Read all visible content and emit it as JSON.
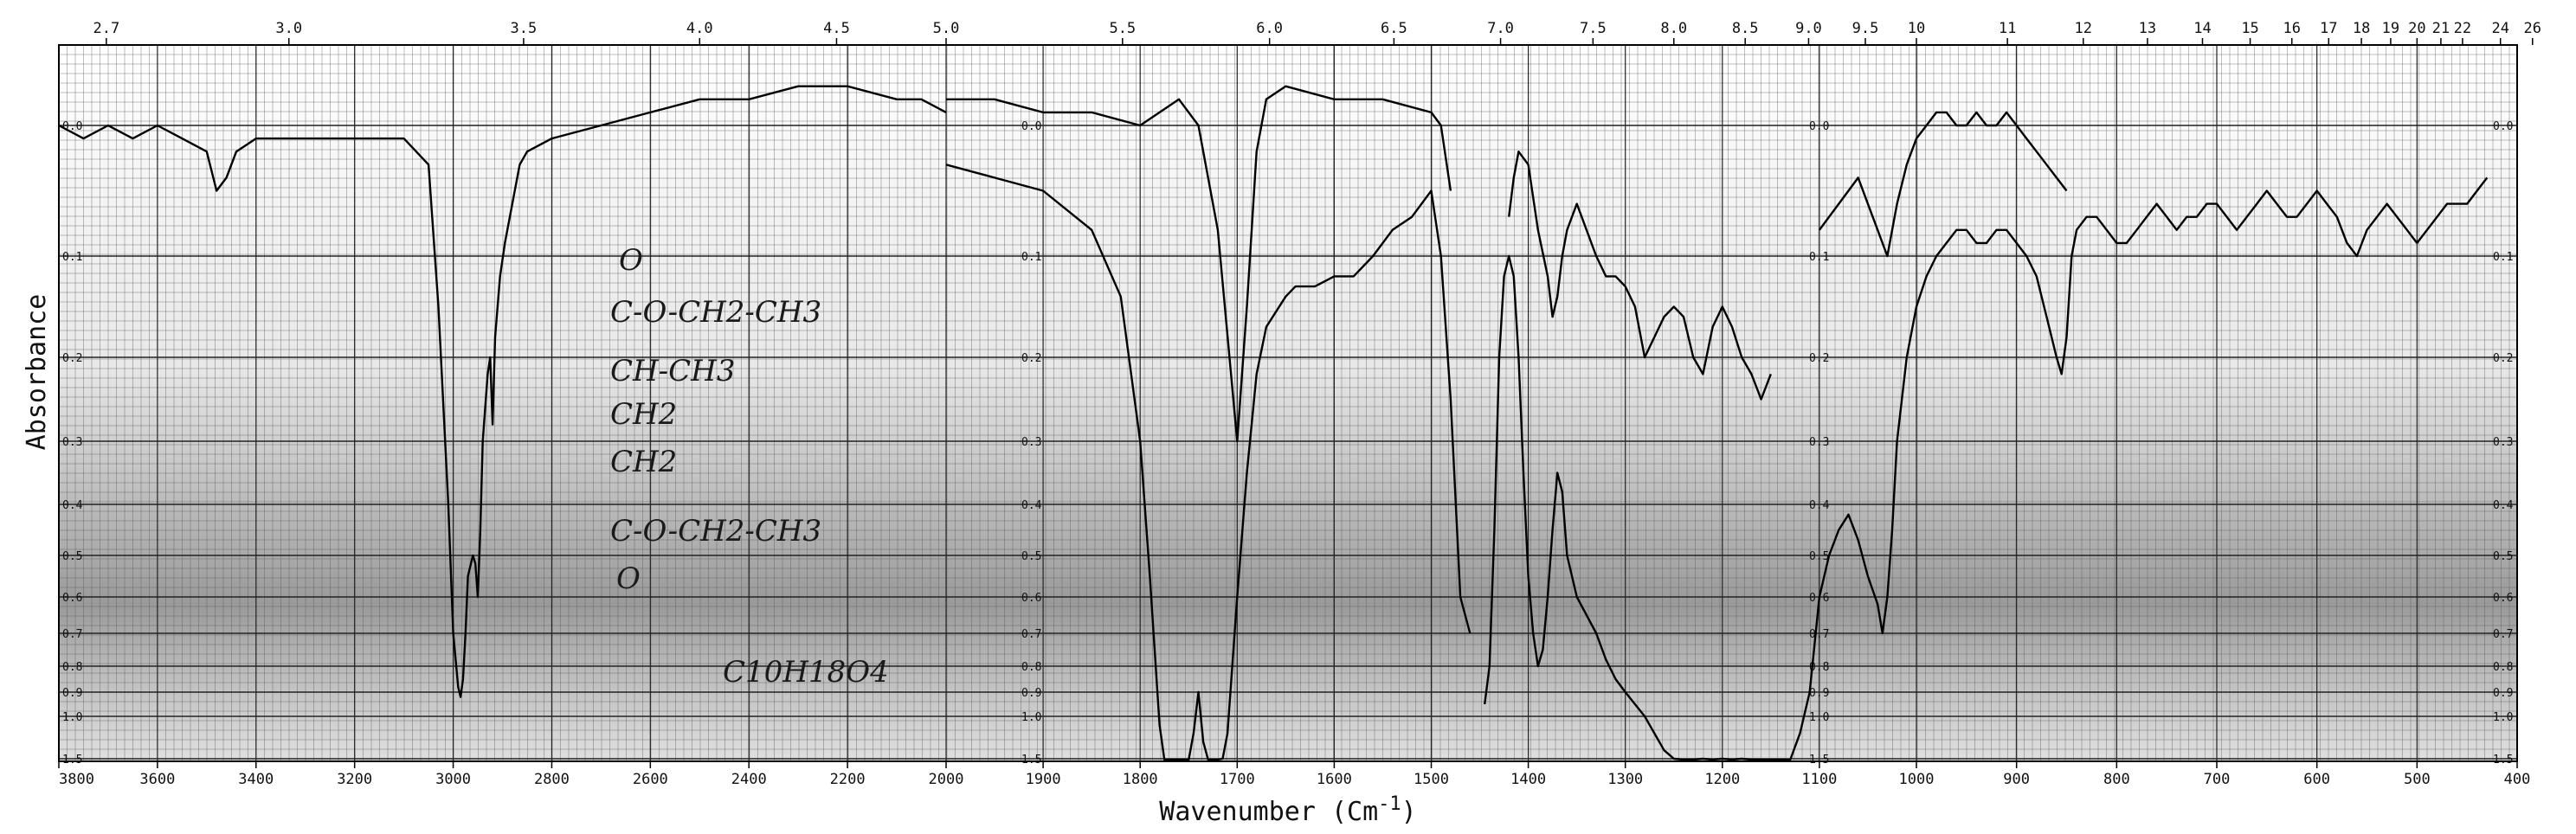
{
  "chart_data": {
    "type": "line",
    "xlabel": "Wavenumber (Cm",
    "xlabel_sup": "-1",
    "ylabel": "Absorbance",
    "x_scale": "piecewise-linear (2x expanded above 2000 cm-1)",
    "grid": true,
    "wavenumber_ticks": [
      "3800",
      "3600",
      "3400",
      "3200",
      "3000",
      "2800",
      "2600",
      "2400",
      "2200",
      "2000",
      "1900",
      "1800",
      "1700",
      "1600",
      "1500",
      "1400",
      "1300",
      "1200",
      "1100",
      "1000",
      "900",
      "800",
      "700",
      "600",
      "500",
      "400"
    ],
    "wavelength_ticks": [
      "2.7",
      "3.0",
      "3.5",
      "4.0",
      "4.5",
      "5.0",
      "5.5",
      "6.0",
      "6.5",
      "7.0",
      "7.5",
      "8.0",
      "8.5",
      "9.0",
      "9.5",
      "10",
      "11",
      "12",
      "13",
      "14",
      "15",
      "16",
      "17",
      "18",
      "19",
      "20",
      "21",
      "22",
      "24",
      "26"
    ],
    "absorbance_ticks": [
      "0.0",
      "0.1",
      "0.2",
      "0.3",
      "0.4",
      "0.5",
      "0.6",
      "0.7",
      "0.8",
      "0.9",
      "1.0",
      "1.5"
    ],
    "annotations": {
      "structure_lines": [
        "O",
        "C-O-CH2-CH3",
        "CH-CH3",
        "CH2",
        "CH2",
        "C-O-CH2-CH3",
        "O"
      ],
      "formula": "C10H18O4"
    },
    "series": [
      {
        "segment": "upper range",
        "x": [
          3800,
          3750,
          3700,
          3650,
          3600,
          3550,
          3500,
          3480,
          3460,
          3440,
          3400,
          3300,
          3200,
          3100,
          3050,
          3030,
          3010,
          3000,
          2990,
          2985,
          2980,
          2975,
          2970,
          2960,
          2955,
          2950,
          2945,
          2940,
          2930,
          2925,
          2920,
          2915,
          2905,
          2895,
          2885,
          2875,
          2865,
          2850,
          2800,
          2700,
          2600,
          2500,
          2400,
          2300,
          2200,
          2100,
          2050,
          2000
        ],
        "y": [
          0.0,
          0.01,
          0.0,
          0.01,
          0.0,
          0.01,
          0.02,
          0.05,
          0.04,
          0.02,
          0.01,
          0.01,
          0.01,
          0.01,
          0.03,
          0.15,
          0.4,
          0.7,
          0.88,
          0.92,
          0.85,
          0.7,
          0.55,
          0.5,
          0.52,
          0.6,
          0.45,
          0.3,
          0.22,
          0.2,
          0.28,
          0.18,
          0.12,
          0.09,
          0.07,
          0.05,
          0.03,
          0.02,
          0.01,
          0.0,
          -0.01,
          -0.02,
          -0.02,
          -0.03,
          -0.03,
          -0.02,
          -0.02,
          -0.01
        ]
      },
      {
        "segment": "trace 2 (carbonyl region)",
        "x": [
          2000,
          1950,
          1900,
          1850,
          1820,
          1800,
          1790,
          1780,
          1775,
          1770,
          1765,
          1755,
          1750,
          1745,
          1740,
          1735,
          1730,
          1725,
          1720,
          1715,
          1710,
          1700,
          1690,
          1680,
          1670,
          1650,
          1640,
          1620,
          1600,
          1580,
          1560,
          1540,
          1520,
          1500,
          1490,
          1480,
          1470,
          1460
        ],
        "y": [
          0.03,
          0.04,
          0.05,
          0.08,
          0.14,
          0.3,
          0.55,
          1.1,
          1.6,
          1.8,
          1.8,
          1.8,
          1.6,
          1.2,
          0.9,
          1.3,
          1.8,
          1.8,
          1.7,
          1.5,
          1.2,
          0.6,
          0.35,
          0.22,
          0.17,
          0.14,
          0.13,
          0.13,
          0.12,
          0.12,
          0.1,
          0.08,
          0.07,
          0.05,
          0.1,
          0.25,
          0.6,
          0.7
        ]
      },
      {
        "segment": "trace 2 (fingerprint region)",
        "x": [
          1445,
          1440,
          1435,
          1430,
          1425,
          1420,
          1415,
          1410,
          1405,
          1400,
          1395,
          1390,
          1385,
          1380,
          1375,
          1370,
          1365,
          1360,
          1350,
          1340,
          1330,
          1320,
          1310,
          1300,
          1290,
          1280,
          1270,
          1260,
          1250,
          1240,
          1230,
          1220,
          1210,
          1200,
          1190,
          1180,
          1170,
          1160,
          1150,
          1140,
          1130,
          1120,
          1110,
          1100,
          1090,
          1080,
          1070,
          1060,
          1050,
          1040,
          1035,
          1030,
          1025,
          1020,
          1010,
          1000,
          990,
          980,
          970,
          960,
          950,
          940,
          930,
          920,
          910,
          900,
          890,
          880,
          870,
          860,
          855,
          850,
          845,
          840,
          830,
          820,
          810,
          800,
          790,
          780,
          770,
          760,
          750,
          740,
          730,
          720,
          710,
          700,
          690,
          680,
          670,
          660,
          650,
          640,
          630,
          620,
          610,
          600,
          590,
          580,
          570,
          560,
          550,
          540,
          530,
          520,
          510,
          500,
          490,
          480,
          470,
          460,
          450,
          440,
          430
        ],
        "y": [
          0.95,
          0.8,
          0.45,
          0.2,
          0.12,
          0.1,
          0.12,
          0.2,
          0.35,
          0.55,
          0.7,
          0.8,
          0.75,
          0.6,
          0.45,
          0.35,
          0.38,
          0.5,
          0.6,
          0.65,
          0.7,
          0.78,
          0.85,
          0.9,
          0.95,
          1.0,
          1.2,
          1.4,
          1.5,
          1.55,
          1.6,
          1.5,
          1.6,
          1.5,
          1.55,
          1.5,
          1.6,
          1.7,
          1.8,
          1.9,
          1.6,
          1.2,
          0.9,
          0.6,
          0.5,
          0.45,
          0.42,
          0.47,
          0.55,
          0.62,
          0.7,
          0.6,
          0.45,
          0.3,
          0.2,
          0.15,
          0.12,
          0.1,
          0.09,
          0.08,
          0.08,
          0.09,
          0.09,
          0.08,
          0.08,
          0.09,
          0.1,
          0.12,
          0.16,
          0.2,
          0.22,
          0.18,
          0.1,
          0.08,
          0.07,
          0.07,
          0.08,
          0.09,
          0.09,
          0.08,
          0.07,
          0.06,
          0.07,
          0.08,
          0.07,
          0.07,
          0.06,
          0.06,
          0.07,
          0.08,
          0.07,
          0.06,
          0.05,
          0.06,
          0.07,
          0.07,
          0.06,
          0.05,
          0.06,
          0.07,
          0.09,
          0.1,
          0.08,
          0.07,
          0.06,
          0.07,
          0.08,
          0.09,
          0.08,
          0.07,
          0.06,
          0.06,
          0.06,
          0.05,
          0.04
        ]
      },
      {
        "segment": "trace 1 (baseline overlay)",
        "x": [
          2000,
          1950,
          1900,
          1850,
          1800,
          1780,
          1760,
          1740,
          1720,
          1700,
          1690,
          1680,
          1670,
          1650,
          1600,
          1550,
          1500,
          1490,
          1480
        ],
        "y": [
          -0.02,
          -0.02,
          -0.01,
          -0.01,
          0.0,
          -0.01,
          -0.02,
          0.0,
          0.08,
          0.3,
          0.15,
          0.02,
          -0.02,
          -0.03,
          -0.02,
          -0.02,
          -0.01,
          0.0,
          0.05
        ]
      },
      {
        "segment": "trace 1 (1450-1250)",
        "x": [
          1420,
          1415,
          1410,
          1400,
          1390,
          1380,
          1375,
          1370,
          1365,
          1360,
          1350,
          1340,
          1330,
          1320,
          1310,
          1300,
          1290,
          1280,
          1270,
          1260,
          1250,
          1240,
          1230,
          1220,
          1210,
          1200,
          1190,
          1180,
          1170,
          1160,
          1150
        ],
        "y": [
          0.07,
          0.04,
          0.02,
          0.03,
          0.08,
          0.12,
          0.16,
          0.14,
          0.1,
          0.08,
          0.06,
          0.08,
          0.1,
          0.12,
          0.12,
          0.13,
          0.15,
          0.2,
          0.18,
          0.16,
          0.15,
          0.16,
          0.2,
          0.22,
          0.17,
          0.15,
          0.17,
          0.2,
          0.22,
          0.25,
          0.22
        ]
      },
      {
        "segment": "trace 1 (1050-850)",
        "x": [
          1100,
          1080,
          1060,
          1050,
          1040,
          1030,
          1020,
          1010,
          1000,
          990,
          980,
          970,
          960,
          950,
          940,
          930,
          920,
          910,
          900,
          890,
          880,
          870,
          860,
          850
        ],
        "y": [
          0.08,
          0.06,
          0.04,
          0.06,
          0.08,
          0.1,
          0.06,
          0.03,
          0.01,
          0.0,
          -0.01,
          -0.01,
          0.0,
          0.0,
          -0.01,
          0.0,
          0.0,
          -0.01,
          0.0,
          0.01,
          0.02,
          0.03,
          0.04,
          0.05
        ]
      }
    ]
  }
}
